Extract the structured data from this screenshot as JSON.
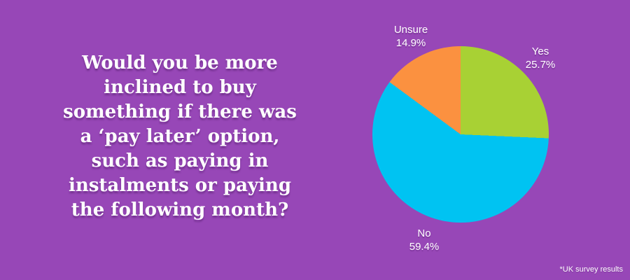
{
  "colors": {
    "background": "#9747b7",
    "text": "#ffffff"
  },
  "question": {
    "lines": [
      "Would you be more",
      "inclined to buy",
      "something if there was",
      "a ‘pay later’ option,",
      "such as paying in",
      "instalments or paying",
      "the following month?"
    ]
  },
  "chart_data": {
    "type": "pie",
    "title": "",
    "start_angle_deg": 0,
    "direction": "clockwise",
    "legend_position": "labels-outside",
    "slices": [
      {
        "label": "Yes",
        "value": 25.7,
        "percent_label": "25.7%",
        "color": "#a8d134"
      },
      {
        "label": "No",
        "value": 59.4,
        "percent_label": "59.4%",
        "color": "#00c3f2"
      },
      {
        "label": "Unsure",
        "value": 14.9,
        "percent_label": "14.9%",
        "color": "#fb9140"
      }
    ]
  },
  "footnote": "*UK survey results"
}
